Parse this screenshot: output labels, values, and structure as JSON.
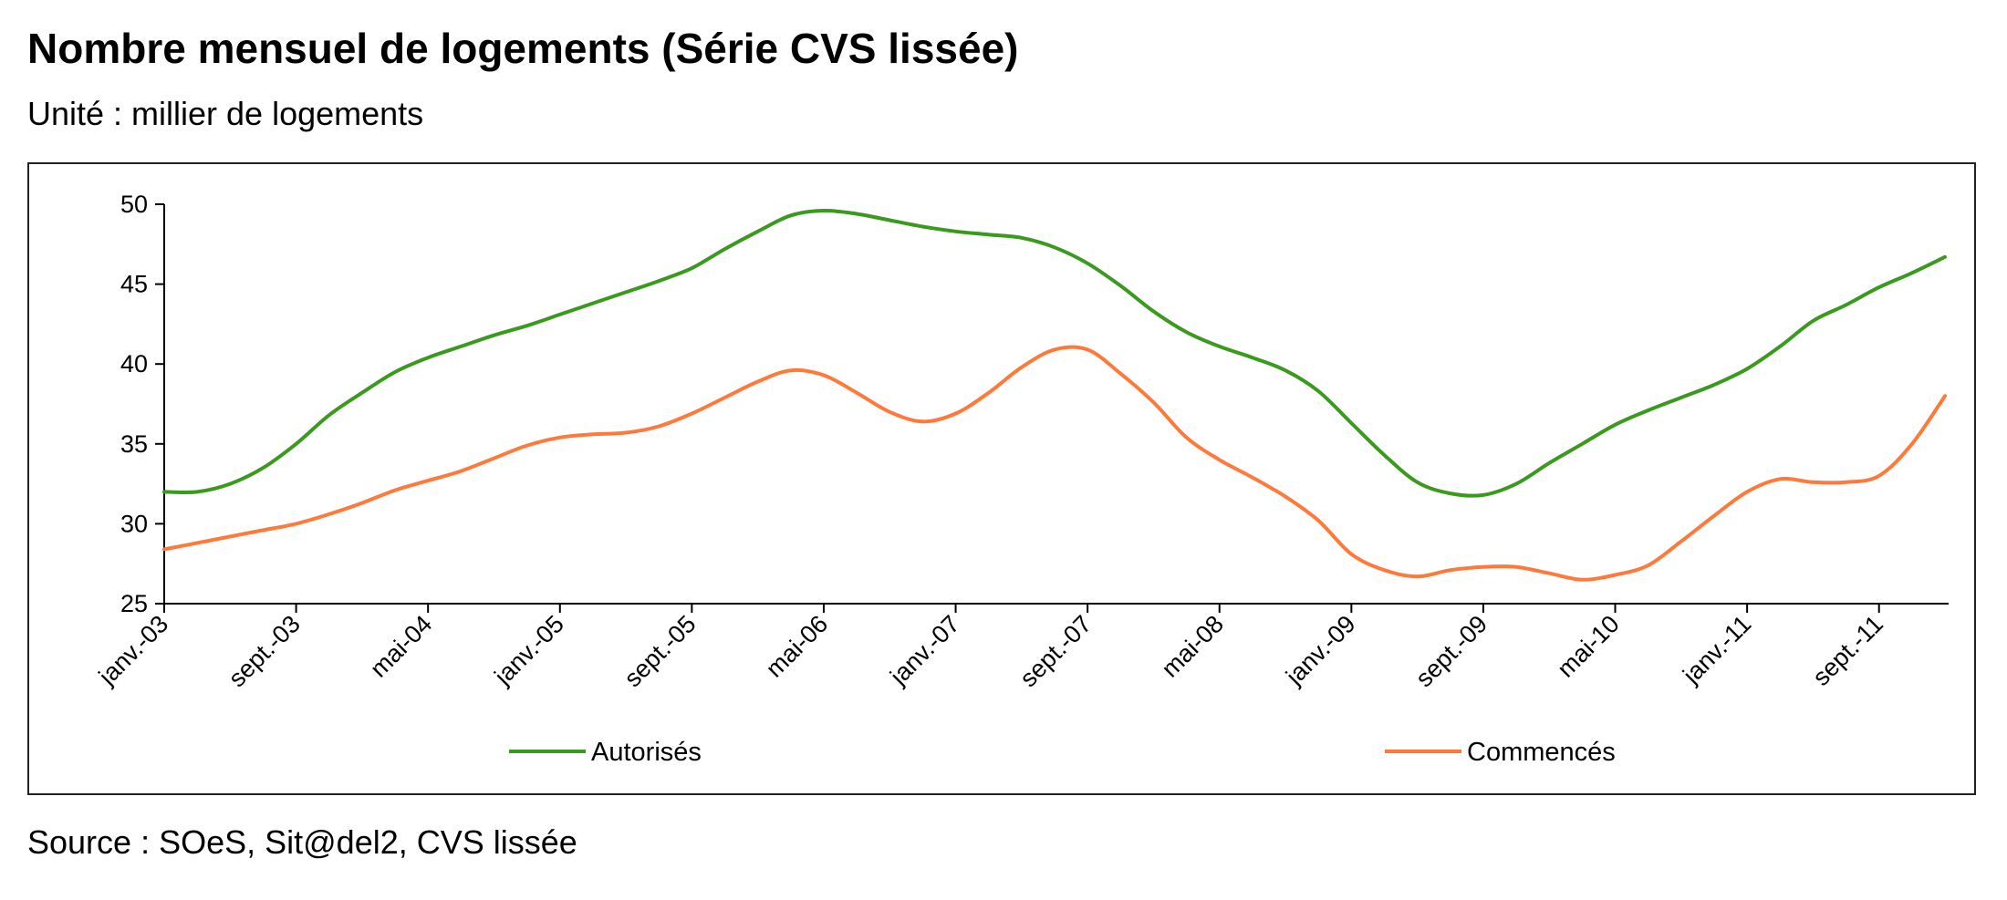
{
  "header": {
    "title": "Nombre mensuel de logements (Série CVS lissée)",
    "subtitle": "Unité : millier de logements"
  },
  "footer": {
    "source": "Source : SOeS, Sit@del2, CVS lissée"
  },
  "colors": {
    "autorises": "#3a9a1e",
    "commences": "#ff7a3a",
    "axis": "#000000"
  },
  "chart_data": {
    "type": "line",
    "title": "Nombre mensuel de logements (Série CVS lissée)",
    "ylabel": "Unité : millier de logements",
    "xlabel": "",
    "ylim": [
      25,
      50
    ],
    "yticks": [
      25,
      30,
      35,
      40,
      45,
      50
    ],
    "xticks": [
      "janv.-03",
      "sept.-03",
      "mai-04",
      "janv.-05",
      "sept.-05",
      "mai-06",
      "janv.-07",
      "sept.-07",
      "mai-08",
      "janv.-09",
      "sept.-09",
      "mai-10",
      "janv.-11",
      "sept.-11"
    ],
    "xtick_months": [
      0,
      8,
      16,
      24,
      32,
      40,
      48,
      56,
      64,
      72,
      80,
      88,
      96,
      104
    ],
    "legend": [
      "Autorisés",
      "Commencés"
    ],
    "legend_position": "bottom",
    "series": [
      {
        "name": "Autorisés",
        "color": "#3a9a1e",
        "points": [
          [
            0,
            32.0
          ],
          [
            2,
            32.0
          ],
          [
            4,
            32.5
          ],
          [
            6,
            33.5
          ],
          [
            8,
            35.0
          ],
          [
            10,
            36.8
          ],
          [
            12,
            38.2
          ],
          [
            14,
            39.5
          ],
          [
            16,
            40.4
          ],
          [
            18,
            41.1
          ],
          [
            20,
            41.8
          ],
          [
            22,
            42.4
          ],
          [
            24,
            43.1
          ],
          [
            26,
            43.8
          ],
          [
            28,
            44.5
          ],
          [
            30,
            45.2
          ],
          [
            32,
            46.0
          ],
          [
            34,
            47.2
          ],
          [
            36,
            48.3
          ],
          [
            38,
            49.3
          ],
          [
            40,
            49.6
          ],
          [
            42,
            49.4
          ],
          [
            44,
            49.0
          ],
          [
            46,
            48.6
          ],
          [
            48,
            48.3
          ],
          [
            50,
            48.1
          ],
          [
            52,
            47.9
          ],
          [
            54,
            47.3
          ],
          [
            56,
            46.3
          ],
          [
            58,
            44.9
          ],
          [
            60,
            43.3
          ],
          [
            62,
            42.0
          ],
          [
            64,
            41.1
          ],
          [
            66,
            40.4
          ],
          [
            68,
            39.6
          ],
          [
            70,
            38.3
          ],
          [
            72,
            36.3
          ],
          [
            74,
            34.3
          ],
          [
            76,
            32.6
          ],
          [
            78,
            31.9
          ],
          [
            80,
            31.8
          ],
          [
            82,
            32.5
          ],
          [
            84,
            33.8
          ],
          [
            86,
            35.0
          ],
          [
            88,
            36.2
          ],
          [
            90,
            37.1
          ],
          [
            92,
            37.9
          ],
          [
            94,
            38.7
          ],
          [
            96,
            39.7
          ],
          [
            98,
            41.1
          ],
          [
            100,
            42.7
          ],
          [
            102,
            43.7
          ],
          [
            104,
            44.8
          ],
          [
            106,
            45.7
          ],
          [
            108,
            46.7
          ]
        ]
      },
      {
        "name": "Commencés",
        "color": "#ff7a3a",
        "points": [
          [
            0,
            28.4
          ],
          [
            2,
            28.8
          ],
          [
            4,
            29.2
          ],
          [
            6,
            29.6
          ],
          [
            8,
            30.0
          ],
          [
            10,
            30.6
          ],
          [
            12,
            31.3
          ],
          [
            14,
            32.1
          ],
          [
            16,
            32.7
          ],
          [
            18,
            33.3
          ],
          [
            20,
            34.1
          ],
          [
            22,
            34.9
          ],
          [
            24,
            35.4
          ],
          [
            26,
            35.6
          ],
          [
            28,
            35.7
          ],
          [
            30,
            36.1
          ],
          [
            32,
            36.9
          ],
          [
            34,
            37.9
          ],
          [
            36,
            38.9
          ],
          [
            38,
            39.6
          ],
          [
            40,
            39.3
          ],
          [
            42,
            38.2
          ],
          [
            44,
            37.0
          ],
          [
            46,
            36.4
          ],
          [
            48,
            36.9
          ],
          [
            50,
            38.2
          ],
          [
            52,
            39.8
          ],
          [
            54,
            40.9
          ],
          [
            56,
            40.9
          ],
          [
            58,
            39.4
          ],
          [
            60,
            37.6
          ],
          [
            62,
            35.4
          ],
          [
            64,
            34.0
          ],
          [
            66,
            32.9
          ],
          [
            68,
            31.7
          ],
          [
            70,
            30.2
          ],
          [
            72,
            28.1
          ],
          [
            74,
            27.1
          ],
          [
            76,
            26.7
          ],
          [
            78,
            27.1
          ],
          [
            80,
            27.3
          ],
          [
            82,
            27.3
          ],
          [
            84,
            26.9
          ],
          [
            86,
            26.5
          ],
          [
            88,
            26.8
          ],
          [
            90,
            27.4
          ],
          [
            92,
            28.9
          ],
          [
            94,
            30.5
          ],
          [
            96,
            32.0
          ],
          [
            98,
            32.8
          ],
          [
            100,
            32.6
          ],
          [
            102,
            32.6
          ],
          [
            104,
            33.0
          ],
          [
            106,
            35.0
          ],
          [
            108,
            38.0
          ]
        ]
      }
    ]
  }
}
